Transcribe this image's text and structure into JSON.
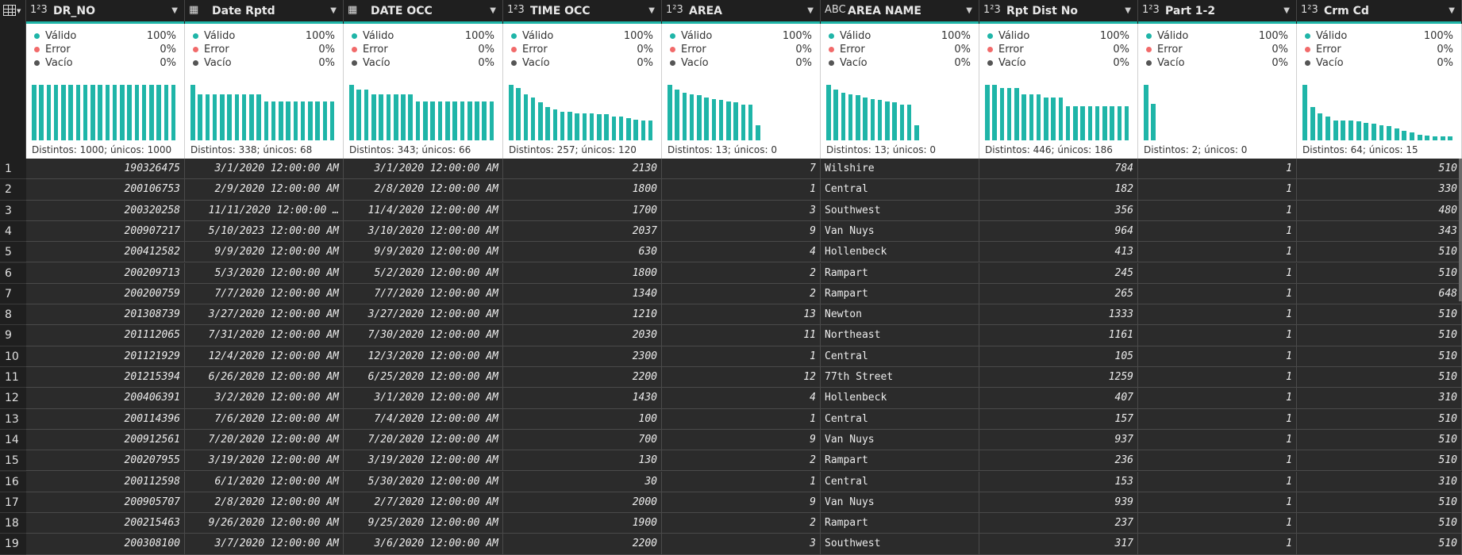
{
  "corner": {
    "icon": "table-grid-icon"
  },
  "colors": {
    "accent": "#1fb5a8",
    "error": "#f16a6a",
    "empty": "#555555",
    "header_bg": "#1f1f1f",
    "cell_bg": "#2b2b2b"
  },
  "columns": [
    {
      "name": "DR_NO",
      "type": "1²3",
      "type_icon": "number-type-icon",
      "kind": "num",
      "valid": "100%",
      "error": "0%",
      "empty": "0%",
      "distinct": "Distintos: 1000; únicos: 1000",
      "hist": [
        0.93,
        0.93,
        0.93,
        0.93,
        0.93,
        0.93,
        0.93,
        0.93,
        0.93,
        0.93,
        0.93,
        0.93,
        0.93,
        0.93,
        0.93,
        0.93,
        0.93,
        0.93,
        0.93,
        0.93
      ]
    },
    {
      "name": "Date Rptd",
      "type": "date",
      "type_icon": "datetime-type-icon",
      "kind": "date",
      "valid": "100%",
      "error": "0%",
      "empty": "0%",
      "distinct": "Distintos: 338; únicos: 68",
      "hist": [
        0.93,
        0.77,
        0.77,
        0.77,
        0.77,
        0.77,
        0.77,
        0.77,
        0.77,
        0.77,
        0.66,
        0.66,
        0.66,
        0.66,
        0.66,
        0.66,
        0.66,
        0.66,
        0.66,
        0.66
      ]
    },
    {
      "name": "DATE OCC",
      "type": "date",
      "type_icon": "datetime-type-icon",
      "kind": "date",
      "valid": "100%",
      "error": "0%",
      "empty": "0%",
      "distinct": "Distintos: 343; únicos: 66",
      "hist": [
        0.93,
        0.86,
        0.86,
        0.78,
        0.78,
        0.78,
        0.78,
        0.78,
        0.78,
        0.66,
        0.66,
        0.66,
        0.66,
        0.66,
        0.66,
        0.66,
        0.66,
        0.66,
        0.66,
        0.66
      ]
    },
    {
      "name": "TIME OCC",
      "type": "1²3",
      "type_icon": "number-type-icon",
      "kind": "num",
      "valid": "100%",
      "error": "0%",
      "empty": "0%",
      "distinct": "Distintos: 257; únicos: 120",
      "hist": [
        0.93,
        0.88,
        0.78,
        0.72,
        0.64,
        0.56,
        0.52,
        0.48,
        0.48,
        0.46,
        0.46,
        0.46,
        0.44,
        0.44,
        0.4,
        0.4,
        0.38,
        0.35,
        0.33,
        0.33
      ]
    },
    {
      "name": "AREA",
      "type": "1²3",
      "type_icon": "number-type-icon",
      "kind": "num",
      "valid": "100%",
      "error": "0%",
      "empty": "0%",
      "distinct": "Distintos: 13; únicos: 0",
      "hist": [
        0.93,
        0.86,
        0.8,
        0.78,
        0.76,
        0.72,
        0.7,
        0.68,
        0.66,
        0.64,
        0.6,
        0.6,
        0.26
      ]
    },
    {
      "name": "AREA NAME",
      "type": "ABC",
      "type_icon": "text-type-icon",
      "kind": "txt",
      "valid": "100%",
      "error": "0%",
      "empty": "0%",
      "distinct": "Distintos: 13; únicos: 0",
      "hist": [
        0.93,
        0.86,
        0.8,
        0.78,
        0.76,
        0.72,
        0.7,
        0.68,
        0.66,
        0.64,
        0.6,
        0.6,
        0.26
      ]
    },
    {
      "name": "Rpt Dist No",
      "type": "1²3",
      "type_icon": "number-type-icon",
      "kind": "num",
      "valid": "100%",
      "error": "0%",
      "empty": "0%",
      "distinct": "Distintos: 446; únicos: 186",
      "hist": [
        0.93,
        0.93,
        0.88,
        0.88,
        0.88,
        0.78,
        0.78,
        0.78,
        0.72,
        0.72,
        0.72,
        0.58,
        0.58,
        0.58,
        0.58,
        0.58,
        0.58,
        0.58,
        0.58,
        0.58
      ]
    },
    {
      "name": "Part 1-2",
      "type": "1²3",
      "type_icon": "number-type-icon",
      "kind": "num",
      "valid": "100%",
      "error": "0%",
      "empty": "0%",
      "distinct": "Distintos: 2; únicos: 0",
      "hist": [
        0.93,
        0.62
      ]
    },
    {
      "name": "Crm Cd",
      "type": "1²3",
      "type_icon": "number-type-icon",
      "kind": "num",
      "valid": "100%",
      "error": "0%",
      "empty": "0%",
      "distinct": "Distintos: 64; únicos: 15",
      "hist": [
        0.93,
        0.56,
        0.46,
        0.4,
        0.34,
        0.34,
        0.34,
        0.32,
        0.3,
        0.28,
        0.26,
        0.24,
        0.2,
        0.16,
        0.14,
        0.1,
        0.08,
        0.07,
        0.07,
        0.07
      ]
    }
  ],
  "labels": {
    "valid": "Válido",
    "error": "Error",
    "empty": "Vacío"
  },
  "rows": [
    [
      "1",
      "190326475",
      "3/1/2020 12:00:00 AM",
      "3/1/2020 12:00:00 AM",
      "2130",
      "7",
      "Wilshire",
      "784",
      "1",
      "510"
    ],
    [
      "2",
      "200106753",
      "2/9/2020 12:00:00 AM",
      "2/8/2020 12:00:00 AM",
      "1800",
      "1",
      "Central",
      "182",
      "1",
      "330"
    ],
    [
      "3",
      "200320258",
      "11/11/2020 12:00:00 …",
      "11/4/2020 12:00:00 AM",
      "1700",
      "3",
      "Southwest",
      "356",
      "1",
      "480"
    ],
    [
      "4",
      "200907217",
      "5/10/2023 12:00:00 AM",
      "3/10/2020 12:00:00 AM",
      "2037",
      "9",
      "Van Nuys",
      "964",
      "1",
      "343"
    ],
    [
      "5",
      "200412582",
      "9/9/2020 12:00:00 AM",
      "9/9/2020 12:00:00 AM",
      "630",
      "4",
      "Hollenbeck",
      "413",
      "1",
      "510"
    ],
    [
      "6",
      "200209713",
      "5/3/2020 12:00:00 AM",
      "5/2/2020 12:00:00 AM",
      "1800",
      "2",
      "Rampart",
      "245",
      "1",
      "510"
    ],
    [
      "7",
      "200200759",
      "7/7/2020 12:00:00 AM",
      "7/7/2020 12:00:00 AM",
      "1340",
      "2",
      "Rampart",
      "265",
      "1",
      "648"
    ],
    [
      "8",
      "201308739",
      "3/27/2020 12:00:00 AM",
      "3/27/2020 12:00:00 AM",
      "1210",
      "13",
      "Newton",
      "1333",
      "1",
      "510"
    ],
    [
      "9",
      "201112065",
      "7/31/2020 12:00:00 AM",
      "7/30/2020 12:00:00 AM",
      "2030",
      "11",
      "Northeast",
      "1161",
      "1",
      "510"
    ],
    [
      "10",
      "201121929",
      "12/4/2020 12:00:00 AM",
      "12/3/2020 12:00:00 AM",
      "2300",
      "1",
      "Central",
      "105",
      "1",
      "510"
    ],
    [
      "11",
      "201215394",
      "6/26/2020 12:00:00 AM",
      "6/25/2020 12:00:00 AM",
      "2200",
      "12",
      "77th Street",
      "1259",
      "1",
      "510"
    ],
    [
      "12",
      "200406391",
      "3/2/2020 12:00:00 AM",
      "3/1/2020 12:00:00 AM",
      "1430",
      "4",
      "Hollenbeck",
      "407",
      "1",
      "310"
    ],
    [
      "13",
      "200114396",
      "7/6/2020 12:00:00 AM",
      "7/4/2020 12:00:00 AM",
      "100",
      "1",
      "Central",
      "157",
      "1",
      "510"
    ],
    [
      "14",
      "200912561",
      "7/20/2020 12:00:00 AM",
      "7/20/2020 12:00:00 AM",
      "700",
      "9",
      "Van Nuys",
      "937",
      "1",
      "510"
    ],
    [
      "15",
      "200207955",
      "3/19/2020 12:00:00 AM",
      "3/19/2020 12:00:00 AM",
      "130",
      "2",
      "Rampart",
      "236",
      "1",
      "510"
    ],
    [
      "16",
      "200112598",
      "6/1/2020 12:00:00 AM",
      "5/30/2020 12:00:00 AM",
      "30",
      "1",
      "Central",
      "153",
      "1",
      "310"
    ],
    [
      "17",
      "200905707",
      "2/8/2020 12:00:00 AM",
      "2/7/2020 12:00:00 AM",
      "2000",
      "9",
      "Van Nuys",
      "939",
      "1",
      "510"
    ],
    [
      "18",
      "200215463",
      "9/26/2020 12:00:00 AM",
      "9/25/2020 12:00:00 AM",
      "1900",
      "2",
      "Rampart",
      "237",
      "1",
      "510"
    ],
    [
      "19",
      "200308100",
      "3/7/2020 12:00:00 AM",
      "3/6/2020 12:00:00 AM",
      "2200",
      "3",
      "Southwest",
      "317",
      "1",
      "510"
    ]
  ]
}
